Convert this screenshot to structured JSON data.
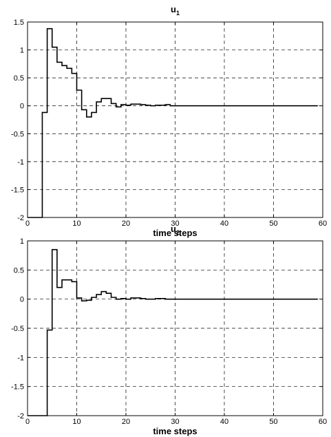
{
  "chart_data": [
    {
      "type": "line",
      "step": true,
      "title": "u",
      "title_subscript": "1",
      "xlabel": "time steps",
      "ylabel": "",
      "xlim": [
        0,
        60
      ],
      "ylim": [
        -2,
        1.5
      ],
      "xticks": [
        0,
        10,
        20,
        30,
        40,
        50,
        60
      ],
      "yticks": [
        -2,
        -1.5,
        -1,
        -0.5,
        0,
        0.5,
        1,
        1.5
      ],
      "grid": true,
      "series": [
        {
          "x": [
            0,
            1,
            2,
            3,
            4,
            5,
            6,
            7,
            8,
            9,
            10,
            11,
            12,
            13,
            14,
            15,
            16,
            17,
            18,
            19,
            20,
            21,
            22,
            23,
            24,
            25,
            26,
            27,
            28,
            29,
            59
          ],
          "y": [
            -2,
            -2,
            -2,
            -0.12,
            1.38,
            1.05,
            0.78,
            0.72,
            0.67,
            0.58,
            0.28,
            -0.07,
            -0.2,
            -0.12,
            0.07,
            0.13,
            0.13,
            0.04,
            -0.02,
            0.02,
            0.01,
            0.03,
            0.03,
            0.02,
            0.01,
            0.0,
            0.01,
            0.01,
            0.02,
            0.0,
            0.0
          ]
        }
      ]
    },
    {
      "type": "line",
      "step": true,
      "title": "u",
      "title_subscript": "2",
      "xlabel": "time steps",
      "ylabel": "",
      "xlim": [
        0,
        60
      ],
      "ylim": [
        -2,
        1
      ],
      "xticks": [
        0,
        10,
        20,
        30,
        40,
        50,
        60
      ],
      "yticks": [
        -2,
        -1.5,
        -1,
        -0.5,
        0,
        0.5,
        1
      ],
      "grid": true,
      "series": [
        {
          "x": [
            0,
            1,
            2,
            3,
            4,
            5,
            6,
            7,
            8,
            9,
            10,
            11,
            12,
            13,
            14,
            15,
            16,
            17,
            18,
            19,
            20,
            21,
            22,
            23,
            24,
            25,
            26,
            27,
            28,
            29,
            59
          ],
          "y": [
            -2,
            -2,
            -2,
            -2,
            -0.53,
            0.85,
            0.2,
            0.33,
            0.33,
            0.3,
            0.02,
            -0.03,
            -0.02,
            0.03,
            0.08,
            0.13,
            0.1,
            0.03,
            0.0,
            0.01,
            0.0,
            0.02,
            0.02,
            0.01,
            0.0,
            0.0,
            0.01,
            0.01,
            0.0,
            0.0,
            0.0
          ]
        }
      ]
    }
  ]
}
